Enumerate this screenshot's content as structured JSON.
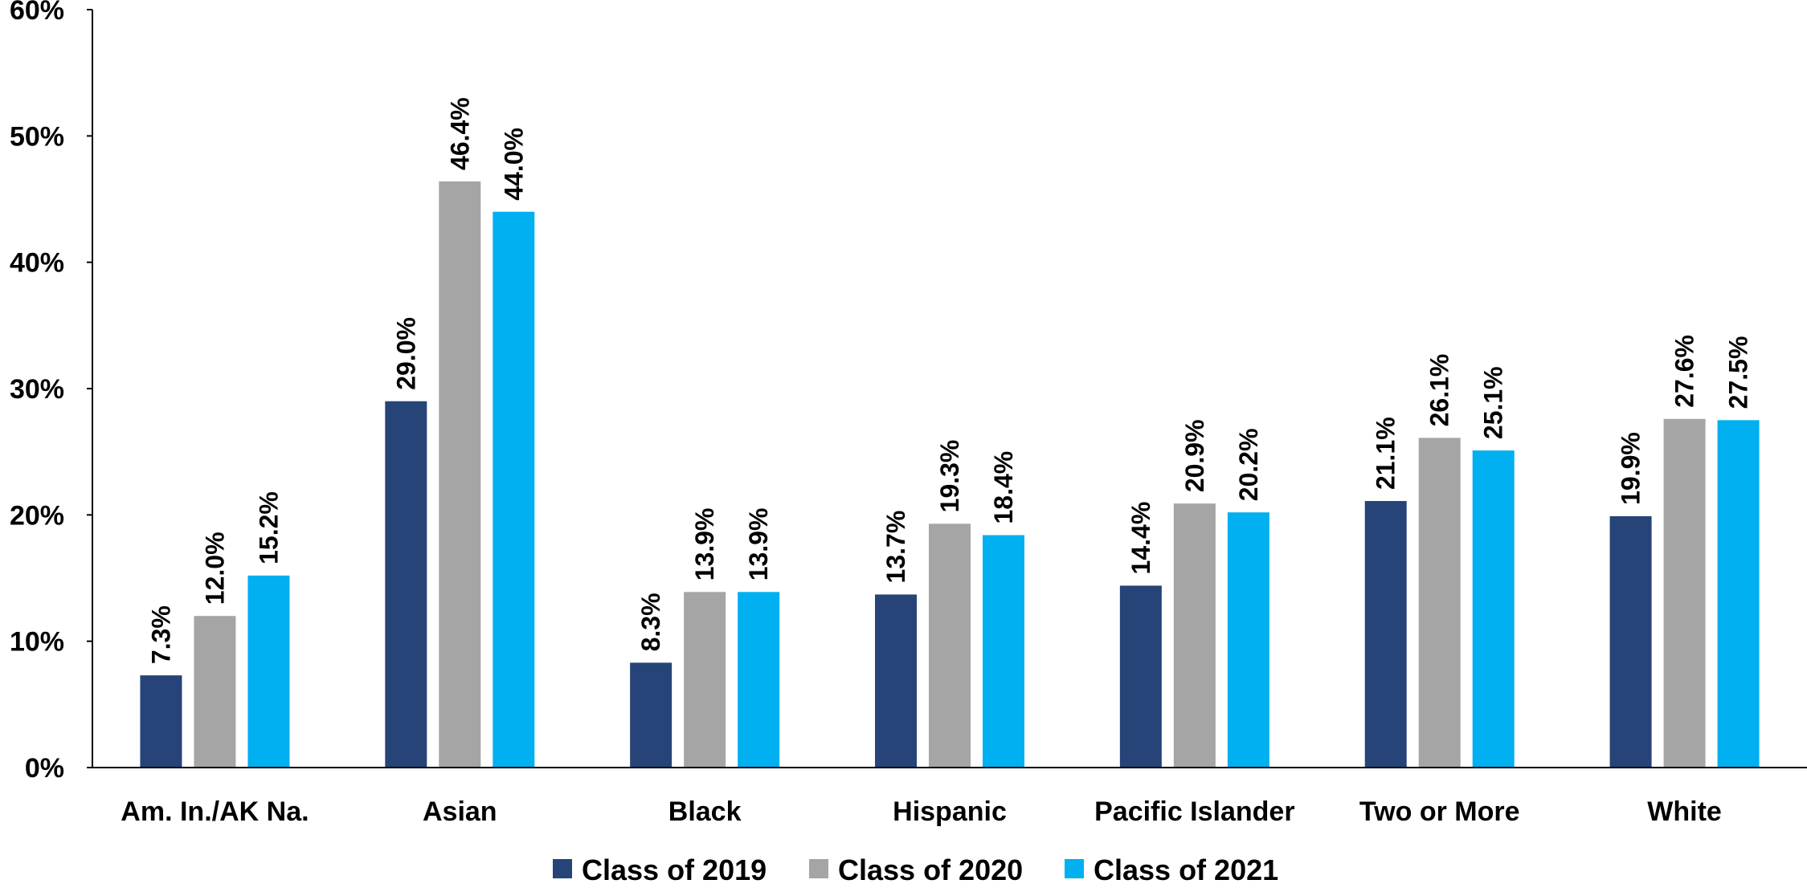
{
  "chart_data": {
    "type": "bar",
    "title": "",
    "xlabel": "",
    "ylabel": "",
    "ylim": [
      0,
      60
    ],
    "yticks": [
      "0%",
      "10%",
      "20%",
      "30%",
      "40%",
      "50%",
      "60%"
    ],
    "ytick_values": [
      0,
      10,
      20,
      30,
      40,
      50,
      60
    ],
    "grid": false,
    "legend_position": "bottom",
    "categories": [
      "Am. In./AK Na.",
      "Asian",
      "Black",
      "Hispanic",
      "Pacific Islander",
      "Two or More",
      "White"
    ],
    "series": [
      {
        "name": "Class of 2019",
        "color": "#264478",
        "values": [
          7.3,
          29.0,
          8.3,
          13.7,
          14.4,
          21.1,
          19.9
        ],
        "labels": [
          "7.3%",
          "29.0%",
          "8.3%",
          "13.7%",
          "14.4%",
          "21.1%",
          "19.9%"
        ]
      },
      {
        "name": "Class of 2020",
        "color": "#A5A5A5",
        "values": [
          12.0,
          46.4,
          13.9,
          19.3,
          20.9,
          26.1,
          27.6
        ],
        "labels": [
          "12.0%",
          "46.4%",
          "13.9%",
          "19.3%",
          "20.9%",
          "26.1%",
          "27.6%"
        ]
      },
      {
        "name": "Class of 2021",
        "color": "#00B0F0",
        "values": [
          15.2,
          44.0,
          13.9,
          18.4,
          20.2,
          25.1,
          27.5
        ],
        "labels": [
          "15.2%",
          "44.0%",
          "13.9%",
          "18.4%",
          "20.2%",
          "25.1%",
          "27.5%"
        ]
      }
    ]
  }
}
